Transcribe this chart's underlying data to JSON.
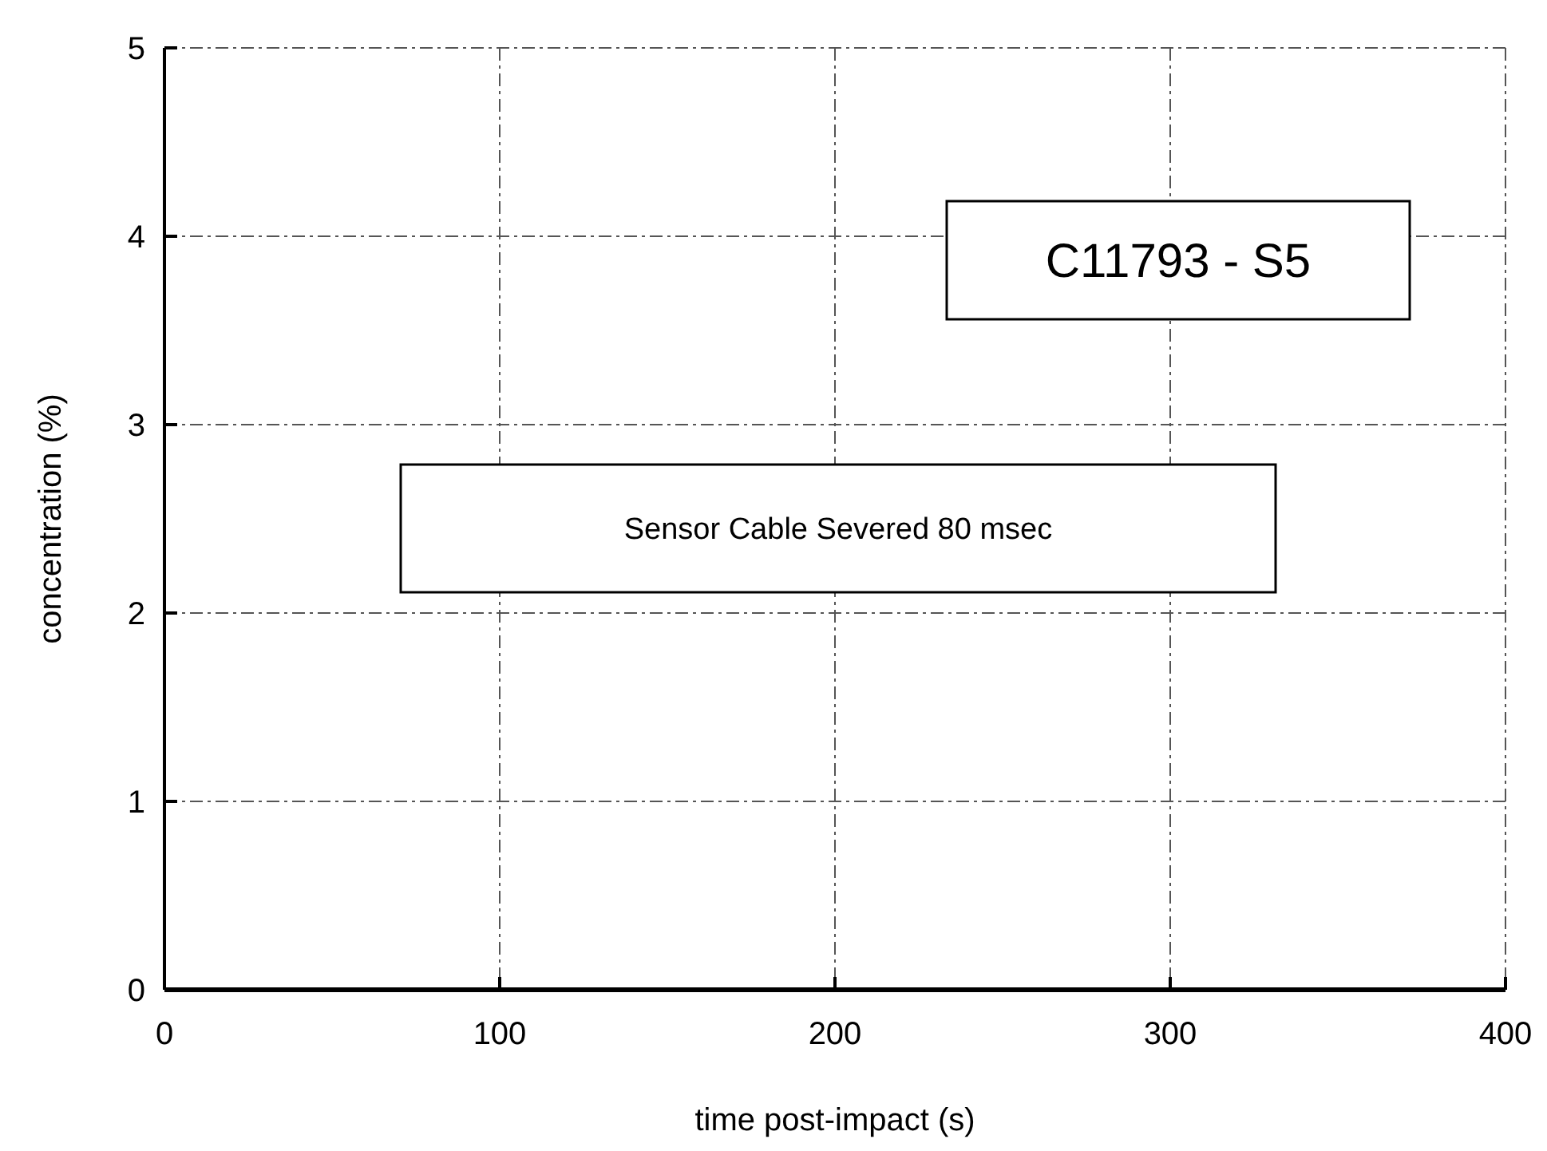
{
  "chart_data": {
    "type": "line",
    "xlabel": "time post-impact (s)",
    "ylabel": "concentration (%)",
    "x": [
      0,
      400
    ],
    "series": [
      {
        "color": "#000000",
        "values": [
          0,
          0
        ]
      }
    ],
    "xlim": [
      0,
      400
    ],
    "ylim": [
      0,
      5
    ],
    "xticks": [
      0,
      100,
      200,
      300,
      400
    ],
    "yticks": [
      0,
      1,
      2,
      3,
      4,
      5
    ],
    "grid": true,
    "line_style": "solid",
    "annotations": [
      "C11793 - S5",
      "Sensor Cable Severed 80 msec"
    ]
  }
}
